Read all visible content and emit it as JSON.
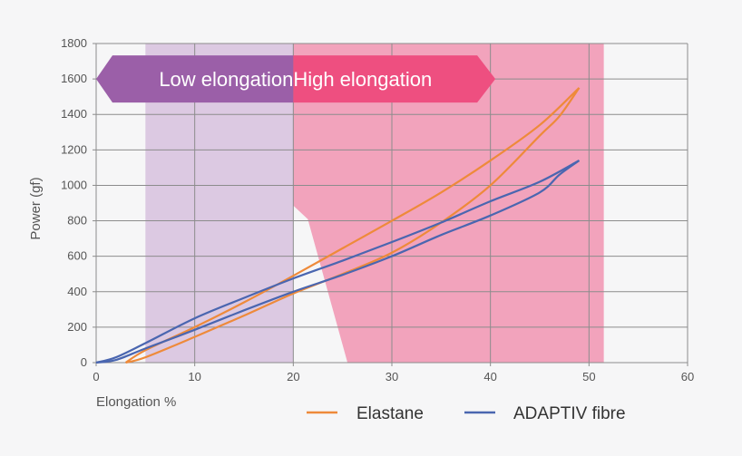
{
  "chart_data": {
    "type": "line",
    "xlabel": "Elongation %",
    "ylabel": "Power (gf)",
    "xlim": [
      0,
      60
    ],
    "ylim": [
      0,
      1800
    ],
    "x_ticks": [
      0,
      10,
      20,
      30,
      40,
      50,
      60
    ],
    "y_ticks": [
      0,
      200,
      400,
      600,
      800,
      1000,
      1200,
      1400,
      1600,
      1800
    ],
    "grid": true,
    "legend_position": "bottom-right",
    "zones": [
      {
        "label": "Low elongation",
        "x_range": [
          5,
          20
        ],
        "fill": "#dcc9e2",
        "arrow": "#9b5fa8"
      },
      {
        "label": "High elongation",
        "x_range": [
          20,
          51.5
        ],
        "fill": "#f2a3bc",
        "arrow": "#ee4f80"
      }
    ],
    "series": [
      {
        "name": "Elastane",
        "color": "#ee8a3a",
        "loading": {
          "x": [
            3,
            5,
            10,
            15,
            20,
            25,
            30,
            35,
            40,
            45,
            49
          ],
          "y": [
            0,
            70,
            200,
            340,
            490,
            645,
            800,
            960,
            1140,
            1340,
            1550
          ]
        },
        "unloading": {
          "x": [
            49,
            47,
            45,
            40,
            35,
            30,
            25,
            20,
            15,
            10,
            5,
            3
          ],
          "y": [
            1550,
            1390,
            1280,
            1000,
            790,
            620,
            500,
            390,
            265,
            145,
            30,
            0
          ]
        }
      },
      {
        "name": "ADAPTIV fibre",
        "color": "#4a66b0",
        "loading": {
          "x": [
            0,
            2,
            5,
            10,
            15,
            20,
            25,
            30,
            35,
            40,
            45,
            49
          ],
          "y": [
            0,
            30,
            110,
            250,
            365,
            475,
            575,
            680,
            790,
            910,
            1020,
            1140
          ]
        },
        "unloading": {
          "x": [
            49,
            47,
            45,
            40,
            35,
            30,
            25,
            20,
            15,
            10,
            5,
            2,
            0
          ],
          "y": [
            1140,
            1060,
            960,
            830,
            720,
            600,
            495,
            400,
            295,
            185,
            80,
            15,
            0
          ]
        }
      }
    ]
  }
}
